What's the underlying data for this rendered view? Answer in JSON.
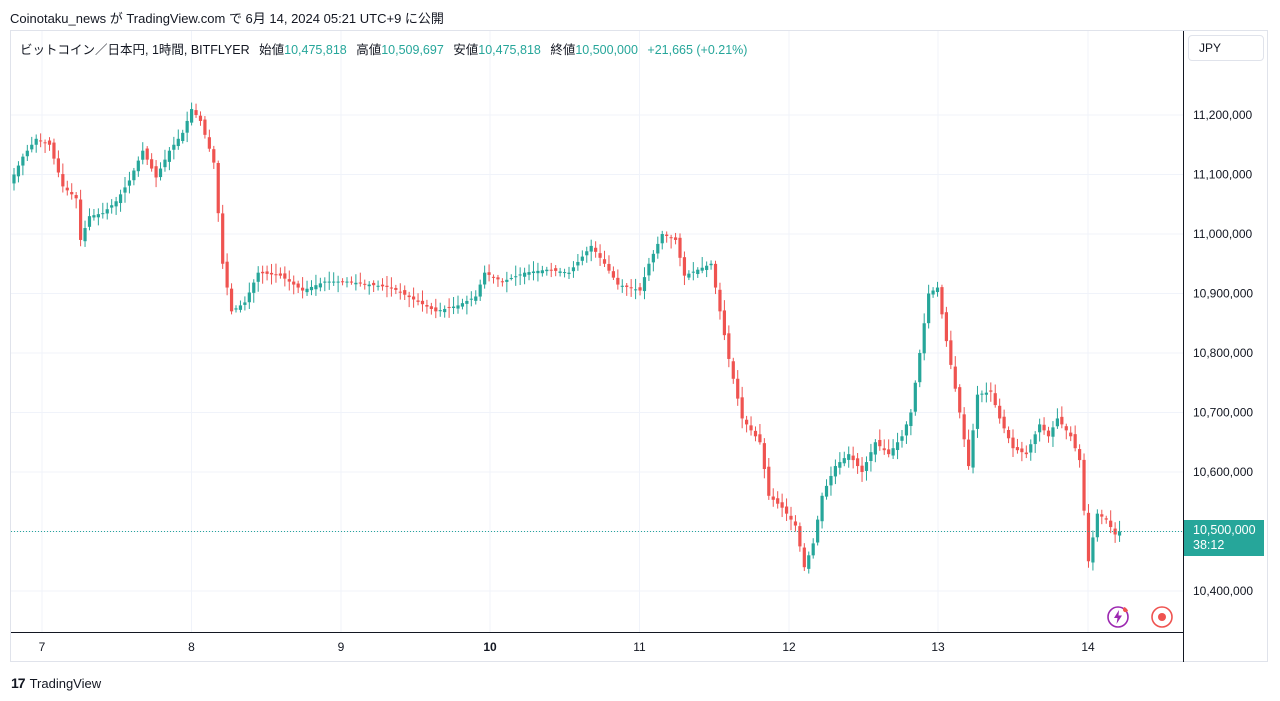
{
  "header": {
    "published_by": "Coinotaku_news が TradingView.com で 6月 14, 2024 05:21 UTC+9 に公開"
  },
  "legend": {
    "symbol": "ビットコイン／日本円, 1時間, BITFLYER",
    "open_label": "始値",
    "open_value": "10,475,818",
    "high_label": "高値",
    "high_value": "10,509,697",
    "low_label": "安値",
    "low_value": "10,475,818",
    "close_label": "終値",
    "close_value": "10,500,000",
    "change": "+21,665 (+0.21%)"
  },
  "currency_button": "JPY",
  "price_tag": {
    "price": "10,500,000",
    "countdown": "38:12"
  },
  "footer": {
    "brand": "TradingView"
  },
  "icons": {
    "bolt": "lightning-icon",
    "record": "record-icon"
  },
  "colors": {
    "up": "#26a69a",
    "down": "#ef5350",
    "grid": "#f0f3fa"
  },
  "chart_data": {
    "type": "candlestick",
    "ylim": [
      10330000,
      11300000
    ],
    "ytick_labels": [
      "11,200,000",
      "11,100,000",
      "11,000,000",
      "10,900,000",
      "10,800,000",
      "10,700,000",
      "10,600,000",
      "10,500,000",
      "10,400,000"
    ],
    "yticks": [
      11200000,
      11100000,
      11000000,
      10900000,
      10800000,
      10700000,
      10600000,
      10500000,
      10400000
    ],
    "xtick_labels": [
      "7",
      "8",
      "9",
      "10",
      "11",
      "12",
      "13",
      "14"
    ],
    "current_price": 10500000,
    "anchors": [
      [
        0,
        11100000
      ],
      [
        2,
        11130000
      ],
      [
        5,
        11160000
      ],
      [
        8,
        11150000
      ],
      [
        11,
        11080000
      ],
      [
        14,
        11060000
      ],
      [
        15,
        10990000
      ],
      [
        17,
        11030000
      ],
      [
        20,
        11035000
      ],
      [
        23,
        11055000
      ],
      [
        26,
        11090000
      ],
      [
        29,
        11140000
      ],
      [
        32,
        11095000
      ],
      [
        35,
        11140000
      ],
      [
        38,
        11170000
      ],
      [
        40,
        11210000
      ],
      [
        42,
        11190000
      ],
      [
        45,
        11120000
      ],
      [
        47,
        10950000
      ],
      [
        49,
        10870000
      ],
      [
        52,
        10885000
      ],
      [
        55,
        10935000
      ],
      [
        60,
        10930000
      ],
      [
        65,
        10905000
      ],
      [
        70,
        10920000
      ],
      [
        75,
        10920000
      ],
      [
        80,
        10915000
      ],
      [
        85,
        10910000
      ],
      [
        90,
        10890000
      ],
      [
        95,
        10870000
      ],
      [
        100,
        10880000
      ],
      [
        104,
        10895000
      ],
      [
        106,
        10935000
      ],
      [
        110,
        10920000
      ],
      [
        115,
        10935000
      ],
      [
        120,
        10940000
      ],
      [
        125,
        10935000
      ],
      [
        130,
        10980000
      ],
      [
        133,
        10950000
      ],
      [
        136,
        10915000
      ],
      [
        141,
        10905000
      ],
      [
        143,
        10950000
      ],
      [
        146,
        11000000
      ],
      [
        149,
        10990000
      ],
      [
        151,
        10930000
      ],
      [
        154,
        10940000
      ],
      [
        157,
        10950000
      ],
      [
        159,
        10870000
      ],
      [
        161,
        10790000
      ],
      [
        164,
        10690000
      ],
      [
        168,
        10650000
      ],
      [
        170,
        10560000
      ],
      [
        173,
        10540000
      ],
      [
        176,
        10510000
      ],
      [
        178,
        10440000
      ],
      [
        180,
        10480000
      ],
      [
        182,
        10560000
      ],
      [
        185,
        10610000
      ],
      [
        188,
        10630000
      ],
      [
        191,
        10600000
      ],
      [
        194,
        10650000
      ],
      [
        197,
        10630000
      ],
      [
        200,
        10660000
      ],
      [
        202,
        10700000
      ],
      [
        204,
        10800000
      ],
      [
        206,
        10900000
      ],
      [
        208,
        10910000
      ],
      [
        210,
        10820000
      ],
      [
        213,
        10700000
      ],
      [
        215,
        10610000
      ],
      [
        217,
        10730000
      ],
      [
        220,
        10735000
      ],
      [
        222,
        10690000
      ],
      [
        225,
        10640000
      ],
      [
        228,
        10630000
      ],
      [
        231,
        10680000
      ],
      [
        233,
        10660000
      ],
      [
        235,
        10690000
      ],
      [
        238,
        10660000
      ],
      [
        240,
        10620000
      ],
      [
        242,
        10450000
      ],
      [
        244,
        10530000
      ],
      [
        246,
        10520000
      ],
      [
        248,
        10495000
      ],
      [
        249,
        10500000
      ]
    ]
  }
}
